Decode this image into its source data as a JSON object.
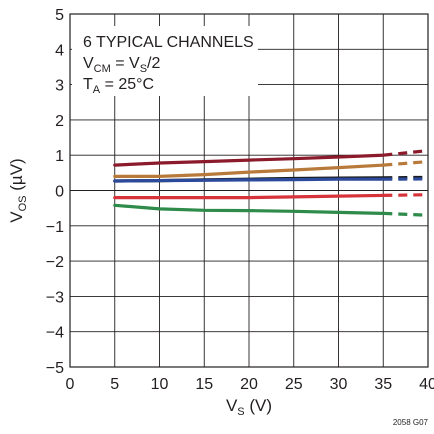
{
  "chart_data": {
    "type": "line",
    "xlabel": {
      "main": "V",
      "sub": "S",
      "unit": " (V)"
    },
    "ylabel": {
      "main": "V",
      "sub": "OS",
      "unit": " (µV)"
    },
    "xlim": [
      0,
      40
    ],
    "ylim": [
      -5,
      5
    ],
    "x_ticks": [
      0,
      5,
      10,
      15,
      20,
      25,
      30,
      35,
      40
    ],
    "y_ticks": [
      -5,
      -4,
      -3,
      -2,
      -1,
      0,
      1,
      2,
      3,
      4,
      5
    ],
    "x_tick_labels": [
      "0",
      "5",
      "10",
      "15",
      "20",
      "25",
      "30",
      "35",
      "40"
    ],
    "y_tick_labels": [
      "−5",
      "−4",
      "−3",
      "−2",
      "−1",
      "0",
      "1",
      "2",
      "3",
      "4",
      "5"
    ],
    "grid": true,
    "annotations": {
      "line1": "6 TYPICAL CHANNELS",
      "line2_main": "V",
      "line2_sub": "CM",
      "line2_mid": " = V",
      "line2_sub2": "S",
      "line2_end": "/2",
      "line3_main": "T",
      "line3_sub": "A",
      "line3_end": " = 25°C"
    },
    "figure_id": "2058 G07",
    "solid_until_x": 35,
    "series": [
      {
        "color": "#8b1a2b",
        "x": [
          5,
          10,
          15,
          20,
          25,
          30,
          35,
          40
        ],
        "values": [
          0.72,
          0.78,
          0.82,
          0.86,
          0.9,
          0.95,
          1.0,
          1.13
        ]
      },
      {
        "color": "#b87a3a",
        "x": [
          5,
          10,
          15,
          20,
          25,
          30,
          35,
          40
        ],
        "values": [
          0.4,
          0.4,
          0.45,
          0.52,
          0.58,
          0.65,
          0.72,
          0.82
        ]
      },
      {
        "color": "#1a1a1a",
        "x": [
          5,
          10,
          15,
          20,
          25,
          30,
          35,
          40
        ],
        "values": [
          0.27,
          0.28,
          0.3,
          0.32,
          0.34,
          0.35,
          0.36,
          0.37
        ]
      },
      {
        "color": "#2c4a9b",
        "x": [
          5,
          10,
          15,
          20,
          25,
          30,
          35,
          40
        ],
        "values": [
          0.27,
          0.28,
          0.29,
          0.3,
          0.31,
          0.32,
          0.32,
          0.33
        ]
      },
      {
        "color": "#d6333a",
        "x": [
          5,
          10,
          15,
          20,
          25,
          30,
          35,
          40
        ],
        "values": [
          -0.2,
          -0.2,
          -0.2,
          -0.2,
          -0.18,
          -0.16,
          -0.14,
          -0.12
        ]
      },
      {
        "color": "#2e8b4a",
        "x": [
          5,
          10,
          15,
          20,
          25,
          30,
          35,
          40
        ],
        "values": [
          -0.42,
          -0.52,
          -0.56,
          -0.57,
          -0.59,
          -0.62,
          -0.65,
          -0.7
        ]
      }
    ]
  }
}
